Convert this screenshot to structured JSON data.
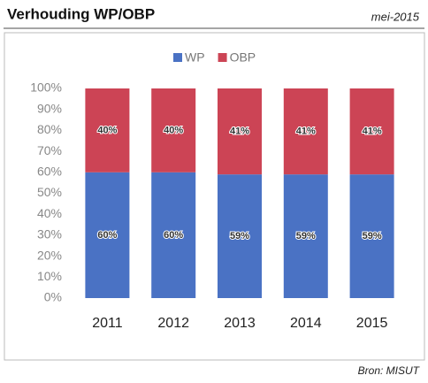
{
  "chart_data": {
    "type": "stacked_bar",
    "title": "Verhouding WP/OBP",
    "date_note": "mei-2015",
    "source": "Bron: MISUT",
    "categories": [
      "2011",
      "2012",
      "2013",
      "2014",
      "2015"
    ],
    "series": [
      {
        "name": "WP",
        "color": "#4a72c4",
        "values": [
          60,
          60,
          59,
          59,
          59
        ],
        "value_labels": [
          "60%",
          "60%",
          "59%",
          "59%",
          "59%"
        ]
      },
      {
        "name": "OBP",
        "color": "#cc4455",
        "values": [
          40,
          40,
          41,
          41,
          41
        ],
        "value_labels": [
          "40%",
          "40%",
          "41%",
          "41%",
          "41%"
        ]
      }
    ],
    "ylim": [
      0,
      100
    ],
    "yticks": [
      {
        "value": 0,
        "label": "0%"
      },
      {
        "value": 10,
        "label": "10%"
      },
      {
        "value": 20,
        "label": "20%"
      },
      {
        "value": 30,
        "label": "30%"
      },
      {
        "value": 40,
        "label": "40%"
      },
      {
        "value": 50,
        "label": "50%"
      },
      {
        "value": 60,
        "label": "60%"
      },
      {
        "value": 70,
        "label": "70%"
      },
      {
        "value": 80,
        "label": "80%"
      },
      {
        "value": 90,
        "label": "90%"
      },
      {
        "value": 100,
        "label": "100%"
      }
    ],
    "grid": false,
    "legend": "top"
  }
}
